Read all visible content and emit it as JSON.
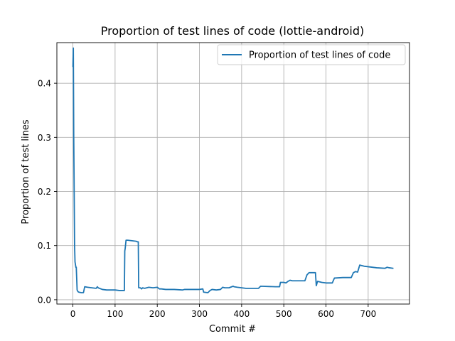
{
  "chart_data": {
    "type": "line",
    "title": "Proportion of test lines of code (lottie-android)",
    "xlabel": "Commit #",
    "ylabel": "Proportion of test lines",
    "xlim": [
      -38,
      798
    ],
    "ylim": [
      -0.008,
      0.475
    ],
    "xticks": [
      0,
      100,
      200,
      300,
      400,
      500,
      600,
      700
    ],
    "yticks": [
      0.0,
      0.1,
      0.2,
      0.3,
      0.4
    ],
    "ytick_labels": [
      "0.0",
      "0.1",
      "0.2",
      "0.3",
      "0.4"
    ],
    "grid": true,
    "legend_position": "top-right",
    "series": [
      {
        "name": "Proportion of test lines of code",
        "color": "#1f77b4",
        "x": [
          0,
          1,
          2,
          3,
          4,
          5,
          6,
          7,
          8,
          10,
          12,
          14,
          20,
          25,
          28,
          35,
          45,
          55,
          58,
          60,
          63,
          70,
          80,
          90,
          100,
          110,
          122,
          123,
          124,
          126,
          127,
          130,
          140,
          150,
          153,
          155,
          156,
          160,
          163,
          165,
          170,
          175,
          180,
          190,
          200,
          205,
          210,
          220,
          240,
          260,
          265,
          270,
          280,
          300,
          308,
          310,
          320,
          325,
          330,
          340,
          350,
          355,
          360,
          370,
          380,
          382,
          390,
          400,
          410,
          420,
          440,
          445,
          480,
          490,
          492,
          500,
          505,
          510,
          515,
          520,
          550,
          555,
          560,
          575,
          577,
          580,
          590,
          600,
          615,
          620,
          640,
          655,
          660,
          665,
          670,
          675,
          680,
          690,
          700,
          720,
          740,
          745,
          750,
          760
        ],
        "y": [
          0.43,
          0.465,
          0.3,
          0.2,
          0.1,
          0.07,
          0.065,
          0.06,
          0.06,
          0.018,
          0.015,
          0.014,
          0.013,
          0.013,
          0.024,
          0.023,
          0.022,
          0.021,
          0.024,
          0.022,
          0.021,
          0.019,
          0.018,
          0.018,
          0.018,
          0.017,
          0.017,
          0.09,
          0.095,
          0.11,
          0.11,
          0.11,
          0.109,
          0.108,
          0.107,
          0.107,
          0.022,
          0.022,
          0.02,
          0.022,
          0.021,
          0.022,
          0.023,
          0.022,
          0.023,
          0.02,
          0.02,
          0.019,
          0.019,
          0.018,
          0.019,
          0.019,
          0.019,
          0.019,
          0.02,
          0.014,
          0.013,
          0.017,
          0.019,
          0.018,
          0.019,
          0.023,
          0.022,
          0.022,
          0.025,
          0.024,
          0.023,
          0.022,
          0.021,
          0.021,
          0.021,
          0.025,
          0.024,
          0.024,
          0.032,
          0.032,
          0.031,
          0.034,
          0.036,
          0.035,
          0.035,
          0.046,
          0.05,
          0.05,
          0.026,
          0.034,
          0.032,
          0.031,
          0.031,
          0.04,
          0.041,
          0.041,
          0.041,
          0.05,
          0.052,
          0.051,
          0.064,
          0.062,
          0.061,
          0.059,
          0.058,
          0.06,
          0.059,
          0.058
        ]
      }
    ]
  }
}
